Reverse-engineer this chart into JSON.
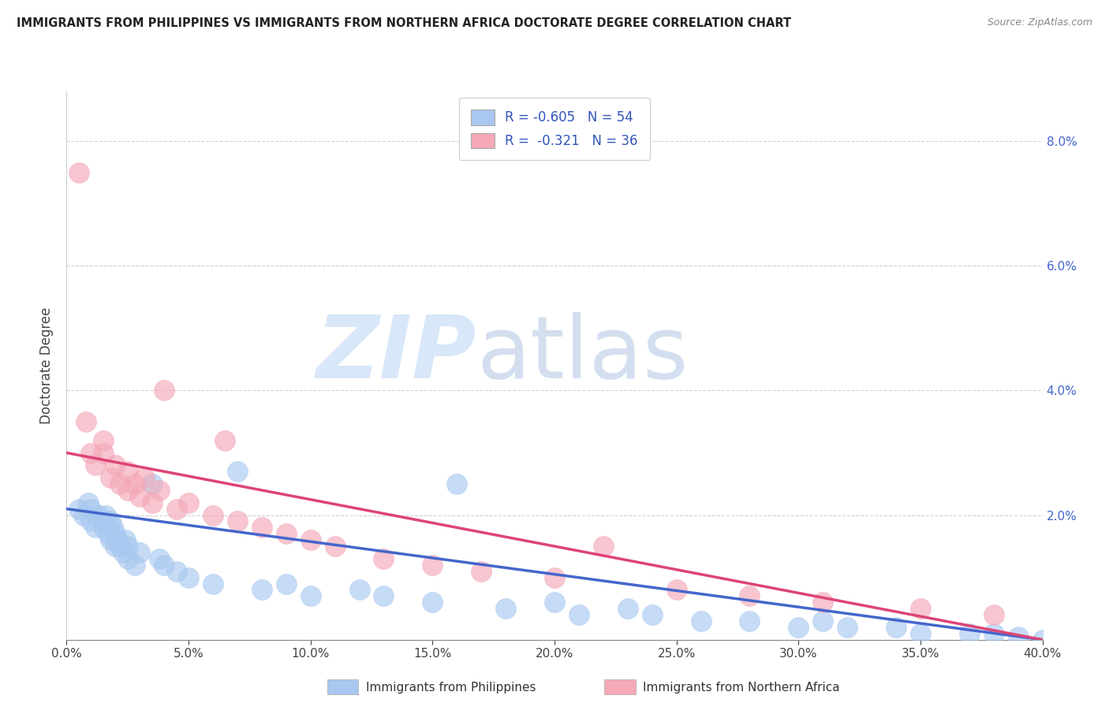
{
  "title": "IMMIGRANTS FROM PHILIPPINES VS IMMIGRANTS FROM NORTHERN AFRICA DOCTORATE DEGREE CORRELATION CHART",
  "source": "Source: ZipAtlas.com",
  "ylabel": "Doctorate Degree",
  "legend_label1": "Immigrants from Philippines",
  "legend_label2": "Immigrants from Northern Africa",
  "R1": -0.605,
  "N1": 54,
  "R2": -0.321,
  "N2": 36,
  "color1": "#a8c8f0",
  "color2": "#f4a8b8",
  "trendline1_color": "#4466cc",
  "trendline2_color": "#dd4477",
  "background_color": "#ffffff",
  "xlim": [
    0.0,
    0.4
  ],
  "ylim": [
    0.0,
    0.088
  ],
  "xticks": [
    0.0,
    0.05,
    0.1,
    0.15,
    0.2,
    0.25,
    0.3,
    0.35,
    0.4
  ],
  "yticks": [
    0.0,
    0.02,
    0.04,
    0.06,
    0.08
  ],
  "philippines_x": [
    0.005,
    0.007,
    0.009,
    0.01,
    0.01,
    0.012,
    0.013,
    0.015,
    0.015,
    0.016,
    0.017,
    0.018,
    0.018,
    0.019,
    0.02,
    0.02,
    0.021,
    0.022,
    0.023,
    0.024,
    0.025,
    0.025,
    0.028,
    0.03,
    0.035,
    0.038,
    0.04,
    0.045,
    0.05,
    0.06,
    0.07,
    0.08,
    0.09,
    0.1,
    0.12,
    0.13,
    0.15,
    0.16,
    0.18,
    0.2,
    0.21,
    0.23,
    0.24,
    0.26,
    0.28,
    0.3,
    0.31,
    0.32,
    0.34,
    0.35,
    0.37,
    0.38,
    0.39,
    0.4
  ],
  "philippines_y": [
    0.021,
    0.02,
    0.022,
    0.019,
    0.021,
    0.018,
    0.02,
    0.019,
    0.018,
    0.02,
    0.017,
    0.019,
    0.016,
    0.018,
    0.015,
    0.017,
    0.016,
    0.015,
    0.014,
    0.016,
    0.013,
    0.015,
    0.012,
    0.014,
    0.025,
    0.013,
    0.012,
    0.011,
    0.01,
    0.009,
    0.027,
    0.008,
    0.009,
    0.007,
    0.008,
    0.007,
    0.006,
    0.025,
    0.005,
    0.006,
    0.004,
    0.005,
    0.004,
    0.003,
    0.003,
    0.002,
    0.003,
    0.002,
    0.002,
    0.001,
    0.001,
    0.001,
    0.0005,
    0.0
  ],
  "northern_africa_x": [
    0.005,
    0.008,
    0.01,
    0.012,
    0.015,
    0.015,
    0.018,
    0.02,
    0.022,
    0.025,
    0.025,
    0.028,
    0.03,
    0.032,
    0.035,
    0.038,
    0.04,
    0.045,
    0.05,
    0.06,
    0.065,
    0.07,
    0.08,
    0.09,
    0.1,
    0.11,
    0.13,
    0.15,
    0.17,
    0.2,
    0.22,
    0.25,
    0.28,
    0.31,
    0.35,
    0.38
  ],
  "northern_africa_y": [
    0.075,
    0.035,
    0.03,
    0.028,
    0.032,
    0.03,
    0.026,
    0.028,
    0.025,
    0.027,
    0.024,
    0.025,
    0.023,
    0.026,
    0.022,
    0.024,
    0.04,
    0.021,
    0.022,
    0.02,
    0.032,
    0.019,
    0.018,
    0.017,
    0.016,
    0.015,
    0.013,
    0.012,
    0.011,
    0.01,
    0.015,
    0.008,
    0.007,
    0.006,
    0.005,
    0.004
  ],
  "trendline1_x0": 0.0,
  "trendline1_y0": 0.021,
  "trendline1_x1": 0.4,
  "trendline1_y1": 0.0,
  "trendline2_x0": 0.0,
  "trendline2_y0": 0.03,
  "trendline2_x1": 0.4,
  "trendline2_y1": 0.0
}
